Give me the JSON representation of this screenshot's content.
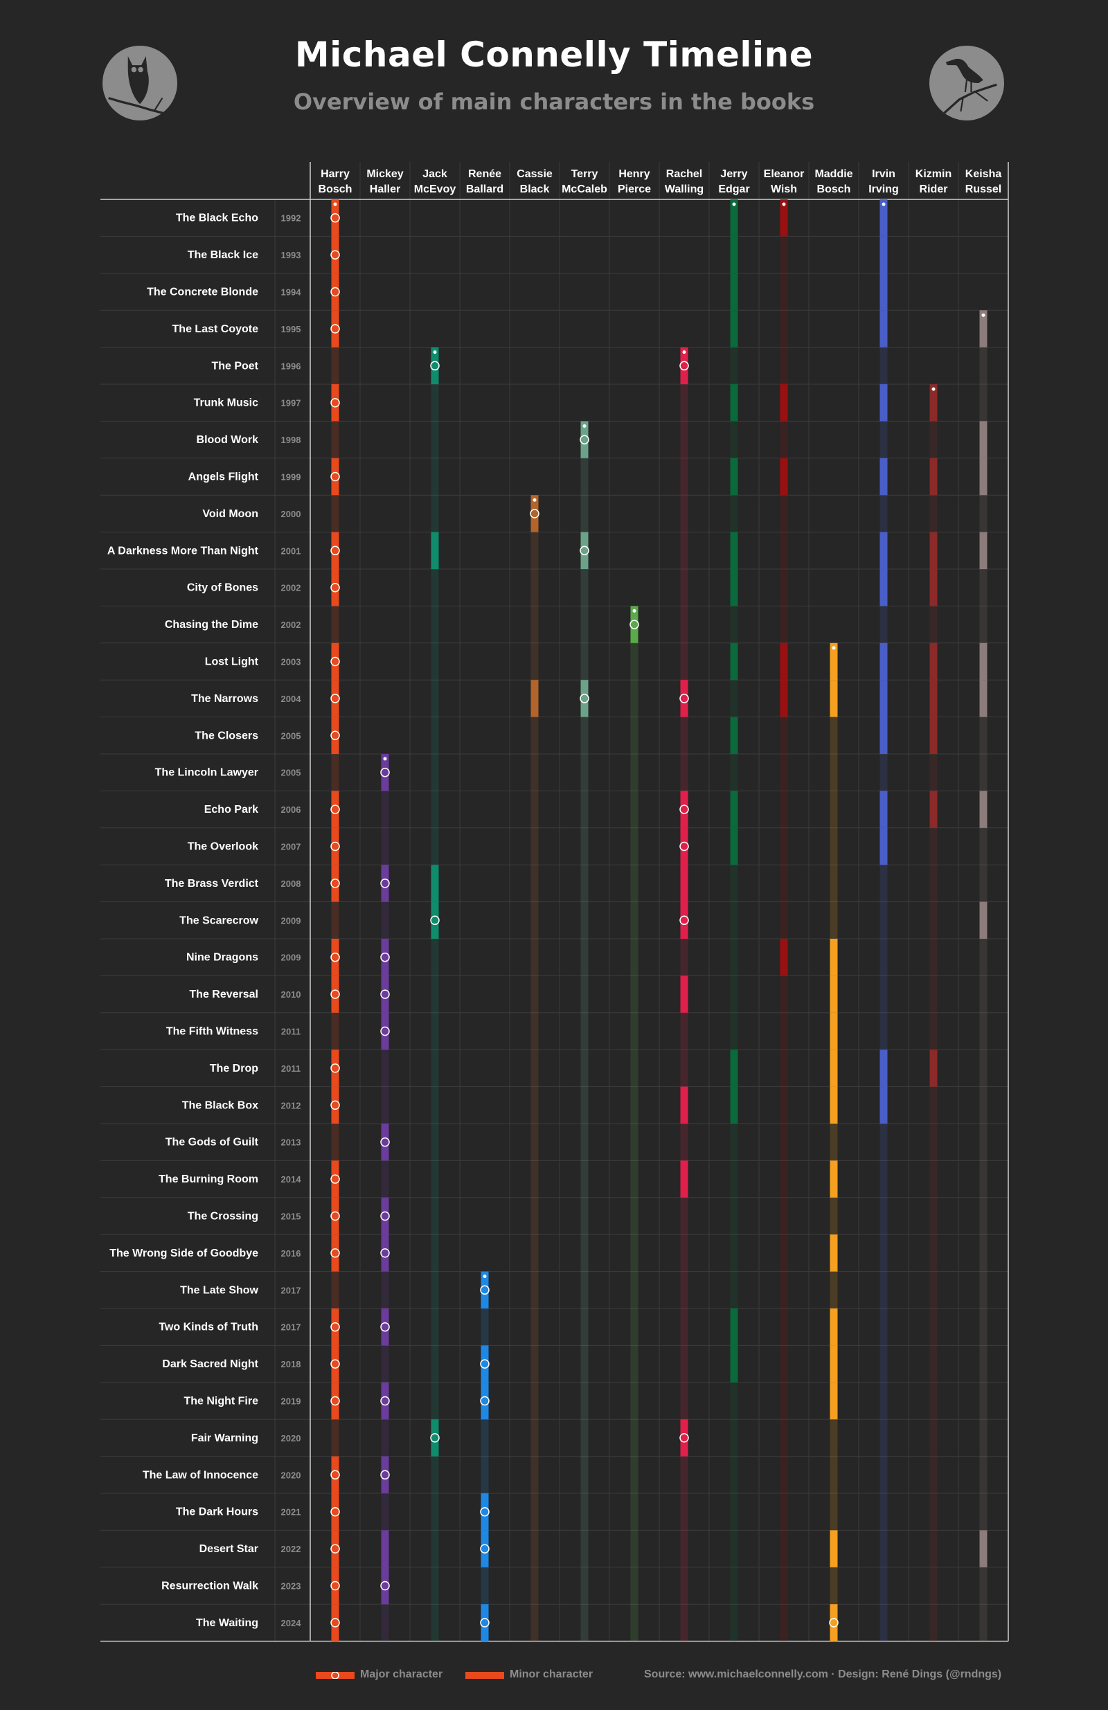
{
  "title": "Michael Connelly Timeline",
  "subtitle": "Overview of main characters in the books",
  "icons": {
    "left_logo": "owl-icon",
    "right_logo": "raven-icon"
  },
  "legend": {
    "major_label": "Major character",
    "minor_label": "Minor character"
  },
  "footer": {
    "credit": "Source: www.michaelconnelly.com  ·  Design: René Dings (@rndngs)"
  },
  "colors": {
    "background": "#262626",
    "grid": "#3c3c3c",
    "text": "#ffffff",
    "muted": "#8c8c8c"
  },
  "chart_data": {
    "type": "table",
    "characters": [
      {
        "name": "Harry Bosch",
        "line1": "Harry",
        "line2": "Bosch",
        "color": "#e8491d"
      },
      {
        "name": "Mickey Haller",
        "line1": "Mickey",
        "line2": "Haller",
        "color": "#6c3c9c"
      },
      {
        "name": "Jack McEvoy",
        "line1": "Jack",
        "line2": "McEvoy",
        "color": "#0f8c6c"
      },
      {
        "name": "Renée Ballard",
        "line1": "Renée",
        "line2": "Ballard",
        "color": "#1e88e5"
      },
      {
        "name": "Cassie Black",
        "line1": "Cassie",
        "line2": "Black",
        "color": "#b3642a"
      },
      {
        "name": "Terry McCaleb",
        "line1": "Terry",
        "line2": "McCaleb",
        "color": "#6aa38a"
      },
      {
        "name": "Henry Pierce",
        "line1": "Henry",
        "line2": "Pierce",
        "color": "#5aaa4a"
      },
      {
        "name": "Rachel Walling",
        "line1": "Rachel",
        "line2": "Walling",
        "color": "#e0204a"
      },
      {
        "name": "Jerry Edgar",
        "line1": "Jerry",
        "line2": "Edgar",
        "color": "#0a6a3c"
      },
      {
        "name": "Eleanor Wish",
        "line1": "Eleanor",
        "line2": "Wish",
        "color": "#9a1010"
      },
      {
        "name": "Maddie Bosch",
        "line1": "Maddie",
        "line2": "Bosch",
        "color": "#f5a020"
      },
      {
        "name": "Irvin Irving",
        "line1": "Irvin",
        "line2": "Irving",
        "color": "#4a5ec8"
      },
      {
        "name": "Kizmin Rider",
        "line1": "Kizmin",
        "line2": "Rider",
        "color": "#8c2a2a"
      },
      {
        "name": "Keisha Russel",
        "line1": "Keisha",
        "line2": "Russel",
        "color": "#8c7c7c"
      }
    ],
    "books": [
      {
        "title": "The Black Echo",
        "year": "1992",
        "major": [
          "Harry Bosch"
        ],
        "minor": [
          "Jerry Edgar",
          "Eleanor Wish",
          "Irvin Irving"
        ]
      },
      {
        "title": "The Black Ice",
        "year": "1993",
        "major": [
          "Harry Bosch"
        ],
        "minor": [
          "Jerry Edgar",
          "Irvin Irving"
        ]
      },
      {
        "title": "The Concrete Blonde",
        "year": "1994",
        "major": [
          "Harry Bosch"
        ],
        "minor": [
          "Jerry Edgar",
          "Irvin Irving"
        ]
      },
      {
        "title": "The Last Coyote",
        "year": "1995",
        "major": [
          "Harry Bosch"
        ],
        "minor": [
          "Jerry Edgar",
          "Irvin Irving",
          "Keisha Russel"
        ]
      },
      {
        "title": "The Poet",
        "year": "1996",
        "major": [
          "Jack McEvoy",
          "Rachel Walling"
        ],
        "minor": []
      },
      {
        "title": "Trunk Music",
        "year": "1997",
        "major": [
          "Harry Bosch"
        ],
        "minor": [
          "Jerry Edgar",
          "Eleanor Wish",
          "Irvin Irving",
          "Kizmin Rider"
        ]
      },
      {
        "title": "Blood Work",
        "year": "1998",
        "major": [
          "Terry McCaleb"
        ],
        "minor": [
          "Keisha Russel"
        ]
      },
      {
        "title": "Angels Flight",
        "year": "1999",
        "major": [
          "Harry Bosch"
        ],
        "minor": [
          "Jerry Edgar",
          "Eleanor Wish",
          "Irvin Irving",
          "Kizmin Rider",
          "Keisha Russel"
        ]
      },
      {
        "title": "Void Moon",
        "year": "2000",
        "major": [
          "Cassie Black"
        ],
        "minor": []
      },
      {
        "title": "A Darkness More Than Night",
        "year": "2001",
        "major": [
          "Harry Bosch",
          "Terry McCaleb"
        ],
        "minor": [
          "Jack McEvoy",
          "Jerry Edgar",
          "Irvin Irving",
          "Kizmin Rider",
          "Keisha Russel"
        ]
      },
      {
        "title": "City of Bones",
        "year": "2002",
        "major": [
          "Harry Bosch"
        ],
        "minor": [
          "Jerry Edgar",
          "Irvin Irving",
          "Kizmin Rider"
        ]
      },
      {
        "title": "Chasing the Dime",
        "year": "2002",
        "major": [
          "Henry Pierce"
        ],
        "minor": []
      },
      {
        "title": "Lost Light",
        "year": "2003",
        "major": [
          "Harry Bosch"
        ],
        "minor": [
          "Jerry Edgar",
          "Eleanor Wish",
          "Maddie Bosch",
          "Irvin Irving",
          "Kizmin Rider",
          "Keisha Russel"
        ]
      },
      {
        "title": "The Narrows",
        "year": "2004",
        "major": [
          "Harry Bosch",
          "Terry McCaleb",
          "Rachel Walling"
        ],
        "minor": [
          "Cassie Black",
          "Eleanor Wish",
          "Maddie Bosch",
          "Irvin Irving",
          "Kizmin Rider",
          "Keisha Russel"
        ]
      },
      {
        "title": "The Closers",
        "year": "2005",
        "major": [
          "Harry Bosch"
        ],
        "minor": [
          "Jerry Edgar",
          "Irvin Irving",
          "Kizmin Rider"
        ]
      },
      {
        "title": "The Lincoln Lawyer",
        "year": "2005",
        "major": [
          "Mickey Haller"
        ],
        "minor": []
      },
      {
        "title": "Echo Park",
        "year": "2006",
        "major": [
          "Harry Bosch",
          "Rachel Walling"
        ],
        "minor": [
          "Jerry Edgar",
          "Irvin Irving",
          "Kizmin Rider",
          "Keisha Russel"
        ]
      },
      {
        "title": "The Overlook",
        "year": "2007",
        "major": [
          "Harry Bosch",
          "Rachel Walling"
        ],
        "minor": [
          "Jerry Edgar",
          "Irvin Irving"
        ]
      },
      {
        "title": "The Brass Verdict",
        "year": "2008",
        "major": [
          "Harry Bosch",
          "Mickey Haller"
        ],
        "minor": [
          "Jack McEvoy",
          "Rachel Walling"
        ]
      },
      {
        "title": "The Scarecrow",
        "year": "2009",
        "major": [
          "Jack McEvoy",
          "Rachel Walling"
        ],
        "minor": [
          "Keisha Russel"
        ]
      },
      {
        "title": "Nine Dragons",
        "year": "2009",
        "major": [
          "Harry Bosch",
          "Mickey Haller"
        ],
        "minor": [
          "Eleanor Wish",
          "Maddie Bosch"
        ]
      },
      {
        "title": "The Reversal",
        "year": "2010",
        "major": [
          "Harry Bosch",
          "Mickey Haller"
        ],
        "minor": [
          "Rachel Walling",
          "Maddie Bosch"
        ]
      },
      {
        "title": "The Fifth Witness",
        "year": "2011",
        "major": [
          "Mickey Haller"
        ],
        "minor": [
          "Maddie Bosch"
        ]
      },
      {
        "title": "The Drop",
        "year": "2011",
        "major": [
          "Harry Bosch"
        ],
        "minor": [
          "Jerry Edgar",
          "Maddie Bosch",
          "Irvin Irving",
          "Kizmin Rider"
        ]
      },
      {
        "title": "The Black Box",
        "year": "2012",
        "major": [
          "Harry Bosch"
        ],
        "minor": [
          "Rachel Walling",
          "Jerry Edgar",
          "Maddie Bosch",
          "Irvin Irving"
        ]
      },
      {
        "title": "The Gods of Guilt",
        "year": "2013",
        "major": [
          "Mickey Haller"
        ],
        "minor": []
      },
      {
        "title": "The Burning Room",
        "year": "2014",
        "major": [
          "Harry Bosch"
        ],
        "minor": [
          "Rachel Walling",
          "Maddie Bosch"
        ]
      },
      {
        "title": "The Crossing",
        "year": "2015",
        "major": [
          "Harry Bosch",
          "Mickey Haller"
        ],
        "minor": []
      },
      {
        "title": "The Wrong Side of Goodbye",
        "year": "2016",
        "major": [
          "Harry Bosch",
          "Mickey Haller"
        ],
        "minor": [
          "Maddie Bosch"
        ]
      },
      {
        "title": "The Late Show",
        "year": "2017",
        "major": [
          "Renée Ballard"
        ],
        "minor": []
      },
      {
        "title": "Two Kinds of Truth",
        "year": "2017",
        "major": [
          "Harry Bosch",
          "Mickey Haller"
        ],
        "minor": [
          "Jerry Edgar",
          "Maddie Bosch"
        ]
      },
      {
        "title": "Dark Sacred Night",
        "year": "2018",
        "major": [
          "Harry Bosch",
          "Renée Ballard"
        ],
        "minor": [
          "Jerry Edgar",
          "Maddie Bosch"
        ]
      },
      {
        "title": "The Night Fire",
        "year": "2019",
        "major": [
          "Harry Bosch",
          "Mickey Haller",
          "Renée Ballard"
        ],
        "minor": [
          "Maddie Bosch"
        ]
      },
      {
        "title": "Fair Warning",
        "year": "2020",
        "major": [
          "Jack McEvoy",
          "Rachel Walling"
        ],
        "minor": []
      },
      {
        "title": "The Law of Innocence",
        "year": "2020",
        "major": [
          "Harry Bosch",
          "Mickey Haller"
        ],
        "minor": []
      },
      {
        "title": "The Dark Hours",
        "year": "2021",
        "major": [
          "Harry Bosch",
          "Renée Ballard"
        ],
        "minor": []
      },
      {
        "title": "Desert Star",
        "year": "2022",
        "major": [
          "Harry Bosch",
          "Renée Ballard"
        ],
        "minor": [
          "Mickey Haller",
          "Maddie Bosch",
          "Keisha Russel"
        ]
      },
      {
        "title": "Resurrection Walk",
        "year": "2023",
        "major": [
          "Harry Bosch",
          "Mickey Haller"
        ],
        "minor": []
      },
      {
        "title": "The Waiting",
        "year": "2024",
        "major": [
          "Harry Bosch",
          "Renée Ballard",
          "Maddie Bosch"
        ],
        "minor": []
      }
    ]
  }
}
